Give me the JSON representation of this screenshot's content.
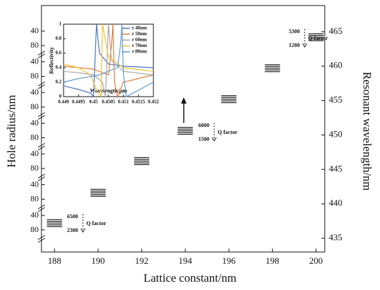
{
  "chart_data": {
    "type": "level-chart",
    "x_label": "Lattice constant/nm",
    "y_label": "Hole radius/nm",
    "y2_label": "Resonant wavelength/nm",
    "xlim": [
      187.4,
      200.4
    ],
    "xticks": [
      188,
      190,
      192,
      194,
      196,
      198,
      200
    ],
    "y2lim": [
      433,
      468.8
    ],
    "y2ticks": [
      435,
      440,
      445,
      450,
      455,
      460,
      465
    ],
    "left_tick_labels": [
      40,
      80
    ],
    "left_segments": 7,
    "color": "#222222",
    "groups": [
      {
        "x": 188,
        "values": [
          437.7,
          437.45,
          437.2,
          436.95,
          436.7
        ]
      },
      {
        "x": 190,
        "values": [
          442.1,
          441.85,
          441.6,
          441.35,
          441.1
        ]
      },
      {
        "x": 192,
        "values": [
          446.7,
          446.45,
          446.2,
          445.95,
          445.7
        ]
      },
      {
        "x": 194,
        "values": [
          451.1,
          450.85,
          450.6,
          450.35,
          450.1
        ]
      },
      {
        "x": 196,
        "values": [
          455.7,
          455.45,
          455.2,
          454.95,
          454.7
        ]
      },
      {
        "x": 198,
        "values": [
          460.2,
          459.95,
          459.7,
          459.45,
          459.2
        ]
      },
      {
        "x": 200,
        "values": [
          464.7,
          464.45,
          464.2,
          463.95,
          463.7
        ]
      }
    ],
    "annotations": [
      {
        "high": "6500",
        "low": "2300",
        "label": "Q factor"
      },
      {
        "high": "6000",
        "low": "1500",
        "label": "Q factor"
      },
      {
        "high": "5300",
        "low": "1200",
        "label": "Q factor"
      }
    ],
    "inset": {
      "type": "line",
      "x_label": "Wavelength/μm",
      "y_label": "Reflectivity",
      "xlim": [
        0.449,
        0.452
      ],
      "xticks": [
        0.449,
        0.4495,
        0.45,
        0.4505,
        0.451,
        0.4515,
        0.452
      ],
      "ylim": [
        0,
        1
      ],
      "yticks": [
        0,
        0.2,
        0.4,
        0.6,
        0.8,
        1
      ],
      "series": [
        {
          "name": "r 40nm",
          "color": "#4a72c0",
          "x": [
            0.449,
            0.4495,
            0.4499,
            0.45,
            0.4501,
            0.4502,
            0.4505,
            0.451,
            0.452
          ],
          "values": [
            0.15,
            0.1,
            0.05,
            0,
            1,
            0.6,
            0.45,
            0.42,
            0.4
          ]
        },
        {
          "name": "r 50nm",
          "color": "#e07b39",
          "x": [
            0.449,
            0.4495,
            0.45,
            0.4505,
            0.4506,
            0.45065,
            0.4507,
            0.4508,
            0.451,
            0.452
          ],
          "values": [
            0.42,
            0.4,
            0.38,
            0.3,
            0.7,
            1,
            0.2,
            0,
            0.2,
            0.3
          ]
        },
        {
          "name": "r 60nm",
          "color": "#a5a5a5",
          "x": [
            0.449,
            0.4495,
            0.45,
            0.4503,
            0.4504,
            0.4505,
            0.4506,
            0.451,
            0.452
          ],
          "values": [
            0.35,
            0.33,
            0.3,
            0.2,
            0,
            1,
            0.5,
            0.35,
            0.3
          ]
        },
        {
          "name": "r 70nm",
          "color": "#f2c12e",
          "x": [
            0.449,
            0.4495,
            0.4499,
            0.4501,
            0.45025,
            0.4503,
            0.4505,
            0.451,
            0.452
          ],
          "values": [
            0.45,
            0.4,
            0.3,
            0.1,
            0,
            1,
            0.55,
            0.4,
            0.35
          ]
        },
        {
          "name": "r 80nm",
          "color": "#5b9bd5",
          "x": [
            0.449,
            0.4495,
            0.4502,
            0.4508,
            0.4509,
            0.45095,
            0.451,
            0.4511,
            0.452
          ],
          "values": [
            0.2,
            0.25,
            0.3,
            0.4,
            0.7,
            1,
            0.3,
            0,
            0.2
          ]
        }
      ]
    }
  }
}
